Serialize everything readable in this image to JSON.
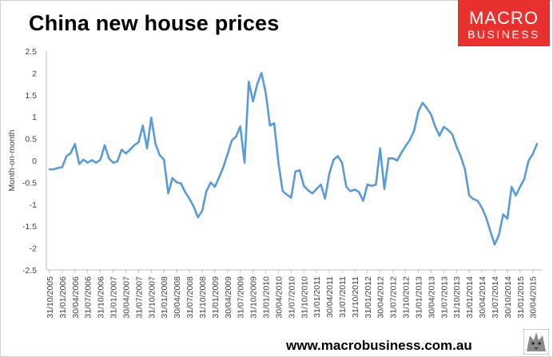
{
  "header": {
    "title": "China new house prices",
    "logo_line1": "MACRO",
    "logo_line2": "BUSINESS"
  },
  "footer": {
    "url": "www.macrobusiness.com.au"
  },
  "colors": {
    "line": "#5b9bd5",
    "logo_bg": "#e8312f",
    "axis": "#bfbfbf"
  },
  "chart_data": {
    "type": "line",
    "title": "China new house prices",
    "ylabel": "Month-on-month",
    "xlabel": "",
    "ylim": [
      -2.5,
      2.5
    ],
    "yticks": [
      -2.5,
      -2,
      -1.5,
      -1,
      -0.5,
      0,
      0.5,
      1,
      1.5,
      2,
      2.5
    ],
    "grid": false,
    "legend": "none",
    "x_tick_labels": [
      "31/10/2005",
      "31/01/2006",
      "30/04/2006",
      "31/07/2006",
      "31/10/2006",
      "31/01/2007",
      "30/04/2007",
      "31/07/2007",
      "31/10/2007",
      "31/01/2008",
      "30/04/2008",
      "31/07/2008",
      "31/10/2008",
      "31/01/2009",
      "30/04/2009",
      "31/07/2009",
      "31/10/2009",
      "31/01/2010",
      "30/04/2010",
      "31/07/2010",
      "31/10/2010",
      "31/01/2011",
      "30/04/2011",
      "31/07/2011",
      "31/10/2011",
      "31/01/2012",
      "30/04/2012",
      "31/07/2012",
      "31/10/2012",
      "31/01/2013",
      "30/04/2013",
      "31/07/2013",
      "31/10/2013",
      "31/01/2014",
      "30/04/2014",
      "31/07/2014",
      "30/10/2014",
      "31/01/2015",
      "30/04/2015"
    ],
    "x_start_month": "2005-10",
    "values": [
      -0.2,
      -0.2,
      -0.17,
      -0.15,
      0.1,
      0.17,
      0.38,
      -0.08,
      0.02,
      -0.05,
      0.01,
      -0.05,
      0.02,
      0.35,
      0.05,
      -0.05,
      -0.02,
      0.25,
      0.16,
      0.25,
      0.35,
      0.42,
      0.8,
      0.28,
      0.98,
      0.38,
      0.12,
      0.02,
      -0.75,
      -0.4,
      -0.5,
      -0.52,
      -0.72,
      -0.87,
      -1.05,
      -1.3,
      -1.15,
      -0.7,
      -0.5,
      -0.6,
      -0.38,
      -0.15,
      0.15,
      0.46,
      0.55,
      0.78,
      -0.05,
      1.8,
      1.35,
      1.75,
      2.0,
      1.55,
      0.8,
      0.85,
      -0.05,
      -0.7,
      -0.78,
      -0.85,
      -0.25,
      -0.22,
      -0.58,
      -0.68,
      -0.75,
      -0.65,
      -0.55,
      -0.87,
      -0.3,
      0.02,
      0.1,
      -0.05,
      -0.6,
      -0.7,
      -0.66,
      -0.72,
      -0.92,
      -0.55,
      -0.58,
      -0.55,
      0.28,
      -0.65,
      0.05,
      0.05,
      0.0,
      0.18,
      0.33,
      0.47,
      0.68,
      1.12,
      1.32,
      1.2,
      1.05,
      0.77,
      0.57,
      0.77,
      0.7,
      0.6,
      0.32,
      0.1,
      -0.2,
      -0.8,
      -0.88,
      -0.92,
      -1.08,
      -1.3,
      -1.62,
      -1.92,
      -1.7,
      -1.23,
      -1.33,
      -0.6,
      -0.8,
      -0.6,
      -0.42,
      0.0,
      0.15,
      0.38
    ]
  }
}
